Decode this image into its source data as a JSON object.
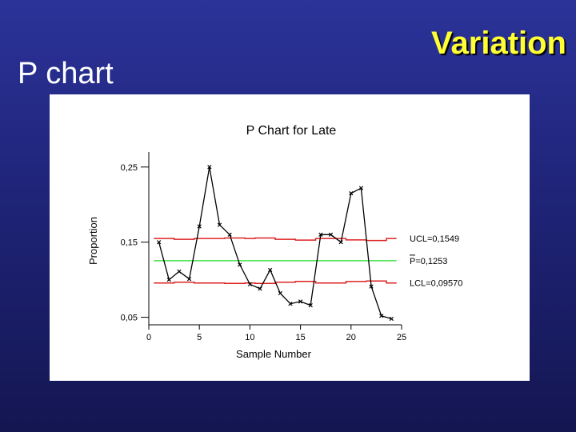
{
  "slide": {
    "title": "P chart",
    "heading": "Variation"
  },
  "chart_data": {
    "type": "line",
    "title": "P Chart for Late",
    "xlabel": "Sample Number",
    "ylabel": "Proportion",
    "xlim": [
      0,
      25
    ],
    "ylim": [
      0.04,
      0.27
    ],
    "x_ticks": [
      0,
      5,
      10,
      15,
      20,
      25
    ],
    "x_tick_labels": [
      "0",
      "5",
      "10",
      "15",
      "20",
      "25"
    ],
    "y_ticks": [
      0.05,
      0.15,
      0.25
    ],
    "y_tick_labels": [
      "0,05",
      "0,15",
      "0,25"
    ],
    "grid": false,
    "series": [
      {
        "name": "",
        "color": "#000000",
        "marker": "x",
        "x": [
          1,
          2,
          3,
          4,
          5,
          6,
          7,
          8,
          9,
          10,
          11,
          12,
          13,
          14,
          15,
          16,
          17,
          18,
          19,
          20,
          21,
          22,
          23,
          24
        ],
        "values": [
          0.15,
          0.1,
          0.111,
          0.101,
          0.171,
          0.25,
          0.173,
          0.16,
          0.12,
          0.094,
          0.088,
          0.113,
          0.082,
          0.068,
          0.071,
          0.066,
          0.16,
          0.16,
          0.15,
          0.215,
          0.222,
          0.091,
          0.052,
          0.048
        ]
      }
    ],
    "center_line": {
      "value": 0.1253,
      "color": "#44e044",
      "label": "P=0,1253"
    },
    "ucl": {
      "color": "#dd2222",
      "label": "UCL=0,1549",
      "values": [
        0.1549,
        0.1549,
        0.1538,
        0.1538,
        0.1549,
        0.1549,
        0.1549,
        0.1555,
        0.1555,
        0.1549,
        0.1555,
        0.1555,
        0.1538,
        0.1538,
        0.1528,
        0.1528,
        0.1549,
        0.1549,
        0.1549,
        0.153,
        0.153,
        0.1522,
        0.1522,
        0.1549
      ]
    },
    "lcl": {
      "color": "#dd2222",
      "label": "LCL=0,09570",
      "values": [
        0.0957,
        0.0957,
        0.0968,
        0.0968,
        0.0957,
        0.0957,
        0.0957,
        0.0951,
        0.0951,
        0.0957,
        0.0951,
        0.0951,
        0.0968,
        0.0968,
        0.0978,
        0.0978,
        0.0957,
        0.0957,
        0.0957,
        0.0976,
        0.0976,
        0.0984,
        0.0984,
        0.0957
      ]
    }
  }
}
